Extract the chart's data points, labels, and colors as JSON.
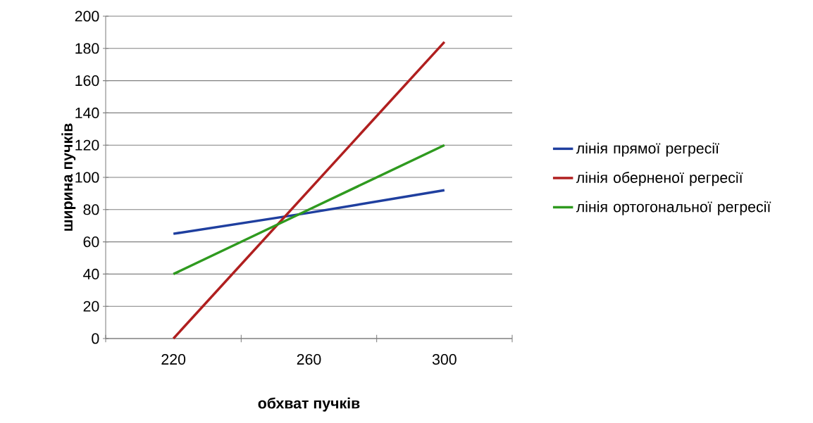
{
  "chart_data": {
    "type": "line",
    "xlabel": "обхват пучків",
    "ylabel": "ширина пучків",
    "categories": [
      "220",
      "260",
      "300"
    ],
    "series": [
      {
        "name": "лінія прямої регресії",
        "color": "#1f3f9f",
        "values": [
          65,
          78,
          92
        ]
      },
      {
        "name": "лінія оберненої регресії",
        "color": "#b01f1f",
        "values": [
          0,
          92,
          184
        ]
      },
      {
        "name": "лінія ортогональної регресії",
        "color": "#2f9a1f",
        "values": [
          40,
          80,
          120
        ]
      }
    ],
    "ylim": [
      0,
      200
    ],
    "yticks": [
      0,
      20,
      40,
      60,
      80,
      100,
      120,
      140,
      160,
      180,
      200
    ],
    "grid": "y",
    "legend": "right"
  }
}
